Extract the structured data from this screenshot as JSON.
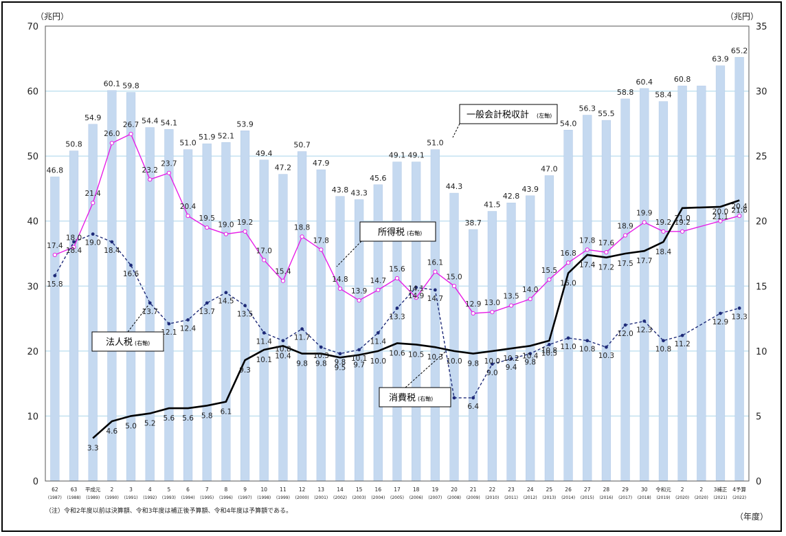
{
  "chart_data": {
    "type": "bar+line",
    "left_axis": {
      "unit": "（兆円）",
      "ticks": [
        "0",
        "10",
        "20",
        "30",
        "40",
        "50",
        "60",
        "70"
      ],
      "ylim": [
        0,
        70
      ]
    },
    "right_axis": {
      "unit": "（兆円）",
      "ticks": [
        "0",
        "5",
        "10",
        "15",
        "20",
        "25",
        "30",
        "35"
      ],
      "ylim": [
        0,
        35
      ]
    },
    "x_unit": "（年度）",
    "categories": [
      "62",
      "63",
      "平成元",
      "2",
      "3",
      "4",
      "5",
      "6",
      "7",
      "8",
      "9",
      "10",
      "11",
      "12",
      "13",
      "14",
      "15",
      "16",
      "17",
      "18",
      "19",
      "20",
      "21",
      "22",
      "23",
      "24",
      "25",
      "26",
      "27",
      "28",
      "29",
      "30",
      "令和元",
      "2",
      "2",
      "3補正",
      "4予算"
    ],
    "calendar": [
      "(1987)",
      "(1988)",
      "(1989)",
      "(1990)",
      "(1991)",
      "(1992)",
      "(1993)",
      "(1994)",
      "(1995)",
      "(1996)",
      "(1997)",
      "(1998)",
      "(1999)",
      "(2000)",
      "(2001)",
      "(2002)",
      "(2003)",
      "(2004)",
      "(2005)",
      "(2006)",
      "(2007)",
      "(2008)",
      "(2009)",
      "(2010)",
      "(2011)",
      "(2012)",
      "(2013)",
      "(2014)",
      "(2015)",
      "(2016)",
      "(2017)",
      "(2018)",
      "(2019)",
      "(2020)",
      "(2020)",
      "(2021)",
      "(2022)"
    ],
    "bars": {
      "name": "一般会計税収計",
      "axis": "left",
      "values": [
        46.8,
        50.8,
        54.9,
        60.1,
        59.8,
        54.4,
        54.1,
        51.0,
        51.9,
        52.1,
        53.9,
        49.4,
        47.2,
        50.7,
        47.9,
        43.8,
        43.3,
        45.6,
        49.1,
        49.1,
        51.0,
        44.3,
        38.7,
        41.5,
        42.8,
        43.9,
        47.0,
        54.0,
        56.3,
        55.5,
        58.8,
        60.4,
        58.4,
        60.8,
        60.8,
        63.9,
        65.2
      ],
      "labels": [
        "46.8",
        "50.8",
        "54.9",
        "60.1",
        "59.8",
        "54.4",
        "54.1",
        "51.0",
        "51.9",
        "52.1",
        "53.9",
        "49.4",
        "47.2",
        "50.7",
        "47.9",
        "43.8",
        "43.3",
        "45.6",
        "49.1",
        "49.1",
        "51.0",
        "44.3",
        "38.7",
        "41.5",
        "42.8",
        "43.9",
        "47.0",
        "54.0",
        "56.3",
        "55.5",
        "58.8",
        "60.4",
        "58.4",
        "60.8",
        "",
        "63.9",
        "65.2"
      ]
    },
    "series": [
      {
        "name": "所得税",
        "axis": "right",
        "color": "#e61ee6",
        "values": [
          17.4,
          18.0,
          21.4,
          26.0,
          26.7,
          23.2,
          23.7,
          20.4,
          19.5,
          19.0,
          19.2,
          17.0,
          15.4,
          18.8,
          17.8,
          14.8,
          13.9,
          14.7,
          15.6,
          14.1,
          16.1,
          15.0,
          12.9,
          13.0,
          13.5,
          14.0,
          15.5,
          16.8,
          17.8,
          17.6,
          18.9,
          19.9,
          19.2,
          19.2,
          null,
          20.0,
          20.4
        ],
        "labels": [
          "17.4",
          "18.0",
          "21.4",
          "26.0",
          "26.7",
          "23.2",
          "23.7",
          "20.4",
          "19.5",
          "19.0",
          "19.2",
          "17.0",
          "15.4",
          "18.8",
          "17.8",
          "14.8",
          "13.9",
          "14.7",
          "15.6",
          "14.1",
          "16.1",
          "15.0",
          "12.9",
          "13.0",
          "13.5",
          "14.0",
          "15.5",
          "16.8",
          "17.8",
          "17.6",
          "18.9",
          "19.9",
          "19.2",
          "19.2",
          "",
          "20.0",
          "20.4"
        ]
      },
      {
        "name": "法人税",
        "axis": "right",
        "color": "#1e2a78",
        "values": [
          15.8,
          18.4,
          19.0,
          18.4,
          16.6,
          13.7,
          12.1,
          12.4,
          13.7,
          14.5,
          13.5,
          11.4,
          10.8,
          11.7,
          10.3,
          9.8,
          10.1,
          11.4,
          13.3,
          14.9,
          14.7,
          6.4,
          6.4,
          9.0,
          9.4,
          9.8,
          10.5,
          11.0,
          10.8,
          10.3,
          12.0,
          12.3,
          10.8,
          11.2,
          null,
          12.9,
          13.3
        ],
        "labels": [
          "15.8",
          "18.4",
          "19.0",
          "18.4",
          "16.6",
          "13.7",
          "12.1",
          "12.4",
          "13.7",
          "14.5",
          "13.5",
          "11.4",
          "10.8",
          "11.7",
          "10.3",
          "9.8",
          "10.1",
          "11.4",
          "13.3",
          "14.9",
          "14.7",
          "",
          "6.4",
          "9.0",
          "9.4",
          "9.8",
          "10.5",
          "11.0",
          "10.8",
          "10.3",
          "12.0",
          "12.3",
          "10.8",
          "11.2",
          "",
          "12.9",
          "13.3"
        ]
      },
      {
        "name": "消費税",
        "axis": "right",
        "color": "#000000",
        "values": [
          null,
          null,
          3.3,
          4.6,
          5.0,
          5.2,
          5.6,
          5.6,
          5.8,
          6.1,
          9.3,
          10.1,
          10.4,
          9.8,
          9.8,
          9.5,
          9.7,
          10.0,
          10.6,
          10.5,
          10.3,
          10.0,
          9.8,
          10.0,
          10.2,
          10.4,
          10.8,
          16.0,
          17.4,
          17.2,
          17.5,
          17.7,
          18.4,
          21.0,
          null,
          21.1,
          21.6
        ],
        "labels": [
          "",
          "",
          "3.3",
          "4.6",
          "5.0",
          "5.2",
          "5.6",
          "5.6",
          "5.8",
          "6.1",
          "9.3",
          "10.1",
          "10.4",
          "9.8",
          "9.8",
          "9.5",
          "9.7",
          "10.0",
          "10.6",
          "10.5",
          "10.3",
          "10.0",
          "9.8",
          "10.0",
          "10.2",
          "10.4",
          "10.8",
          "16.0",
          "17.4",
          "17.2",
          "17.5",
          "17.7",
          "18.4",
          "21.0",
          "",
          "21.1",
          "21.6"
        ]
      }
    ],
    "legend": {
      "total": {
        "main": "一般会計税収計",
        "sub": "(左軸)"
      },
      "income": {
        "main": "所得税",
        "sub": "(右軸)"
      },
      "corp": {
        "main": "法人税",
        "sub": "(右軸)"
      },
      "cons": {
        "main": "消費税",
        "sub": "(右軸)"
      }
    },
    "note": "（注）令和2年度以前は決算額、令和3年度は補正後予算額、令和4年度は予算額である。"
  }
}
